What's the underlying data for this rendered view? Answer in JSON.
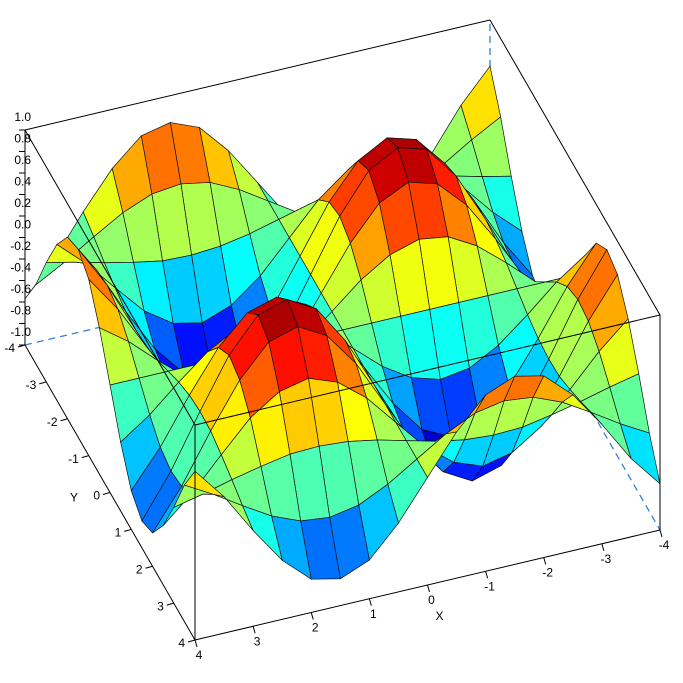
{
  "chart_data": {
    "type": "surface",
    "x": [
      -4,
      -3.5,
      -3,
      -2.5,
      -2,
      -1.5,
      -1,
      -0.5,
      0,
      0.5,
      1,
      1.5,
      2,
      2.5,
      3,
      3.5,
      4
    ],
    "y": [
      -4,
      -3.5,
      -3,
      -2.5,
      -2,
      -1.5,
      -1,
      -0.5,
      0,
      0.5,
      1,
      1.5,
      2,
      2.5,
      3,
      3.5,
      4
    ],
    "z": [
      [
        0.57,
        0.27,
        -0.11,
        -0.45,
        -0.69,
        -0.75,
        -0.64,
        -0.36,
        0,
        0.36,
        0.64,
        0.75,
        0.69,
        0.45,
        0.11,
        -0.27,
        -0.57
      ],
      [
        0.27,
        0.12,
        -0.05,
        -0.21,
        -0.32,
        -0.35,
        -0.3,
        -0.17,
        0,
        0.17,
        0.3,
        0.35,
        0.32,
        0.21,
        0.05,
        -0.12,
        -0.27
      ],
      [
        -0.11,
        -0.05,
        0.02,
        0.08,
        0.13,
        0.14,
        0.12,
        0.07,
        0,
        -0.07,
        -0.12,
        -0.14,
        -0.13,
        -0.08,
        -0.02,
        0.05,
        0.11
      ],
      [
        -0.45,
        -0.21,
        0.08,
        0.36,
        0.54,
        0.6,
        0.5,
        0.29,
        0,
        -0.29,
        -0.5,
        -0.6,
        -0.54,
        -0.36,
        -0.08,
        0.21,
        0.45
      ],
      [
        -0.69,
        -0.32,
        0.13,
        0.54,
        0.83,
        0.91,
        0.76,
        0.44,
        0,
        -0.44,
        -0.76,
        -0.91,
        -0.83,
        -0.54,
        -0.13,
        0.32,
        0.69
      ],
      [
        -0.75,
        -0.35,
        0.14,
        0.6,
        0.91,
        0.99,
        0.84,
        0.48,
        0,
        -0.48,
        -0.84,
        -0.99,
        -0.91,
        -0.6,
        -0.14,
        0.35,
        0.75
      ],
      [
        -0.64,
        -0.3,
        0.12,
        0.5,
        0.76,
        0.84,
        0.71,
        0.4,
        0,
        -0.4,
        -0.71,
        -0.84,
        -0.76,
        -0.5,
        -0.12,
        0.3,
        0.64
      ],
      [
        -0.36,
        -0.17,
        0.07,
        0.29,
        0.44,
        0.48,
        0.4,
        0.23,
        0,
        -0.23,
        -0.4,
        -0.48,
        -0.44,
        -0.29,
        -0.07,
        0.17,
        0.36
      ],
      [
        0,
        0,
        0,
        0,
        0,
        0,
        0,
        0,
        0,
        0,
        0,
        0,
        0,
        0,
        0,
        0,
        0
      ],
      [
        0.36,
        0.17,
        -0.07,
        -0.29,
        -0.44,
        -0.48,
        -0.4,
        -0.23,
        0,
        0.23,
        0.4,
        0.48,
        0.44,
        0.29,
        0.07,
        -0.17,
        -0.36
      ],
      [
        0.64,
        0.3,
        -0.12,
        -0.5,
        -0.76,
        -0.84,
        -0.71,
        -0.4,
        0,
        0.4,
        0.71,
        0.84,
        0.76,
        0.5,
        0.12,
        -0.3,
        -0.64
      ],
      [
        0.75,
        0.35,
        -0.14,
        -0.6,
        -0.91,
        -0.99,
        -0.84,
        -0.48,
        0,
        0.48,
        0.84,
        0.99,
        0.91,
        0.6,
        0.14,
        -0.35,
        -0.75
      ],
      [
        0.69,
        0.32,
        -0.13,
        -0.54,
        -0.83,
        -0.91,
        -0.76,
        -0.44,
        0,
        0.44,
        0.76,
        0.91,
        0.83,
        0.54,
        0.13,
        -0.32,
        -0.69
      ],
      [
        0.45,
        0.21,
        -0.08,
        -0.36,
        -0.54,
        -0.6,
        -0.5,
        -0.29,
        0,
        0.29,
        0.5,
        0.6,
        0.54,
        0.36,
        0.08,
        -0.21,
        -0.45
      ],
      [
        0.11,
        0.05,
        -0.02,
        -0.08,
        -0.13,
        -0.14,
        -0.12,
        -0.07,
        0,
        0.07,
        0.12,
        0.14,
        0.13,
        0.08,
        0.02,
        -0.05,
        -0.11
      ],
      [
        -0.27,
        -0.12,
        0.05,
        0.21,
        0.32,
        0.35,
        0.3,
        0.17,
        0,
        -0.17,
        -0.3,
        -0.35,
        -0.32,
        -0.21,
        -0.05,
        0.12,
        0.27
      ],
      [
        -0.57,
        -0.27,
        0.11,
        0.45,
        0.69,
        0.75,
        0.64,
        0.36,
        0,
        -0.36,
        -0.64,
        -0.75,
        -0.69,
        -0.45,
        -0.11,
        0.27,
        0.57
      ]
    ],
    "xlim": [
      -4,
      4
    ],
    "ylim": [
      -4,
      4
    ],
    "zlim": [
      -1,
      1
    ],
    "xticks": [
      -4,
      -3,
      -2,
      -1,
      0,
      1,
      2,
      3,
      4
    ],
    "yticks": [
      -4,
      -3,
      -2,
      -1,
      0,
      1,
      2,
      3,
      4
    ],
    "zticks": [
      {
        "value": 1,
        "label": "1.0"
      },
      0.8,
      0.6,
      0.4,
      0.2,
      {
        "value": 0,
        "label": "0.0"
      },
      -0.2,
      -0.4,
      -0.6,
      -0.8,
      {
        "value": -1,
        "label": "-1.0"
      }
    ],
    "xlabel": "X",
    "ylabel": "Y",
    "colormap": "jet"
  }
}
